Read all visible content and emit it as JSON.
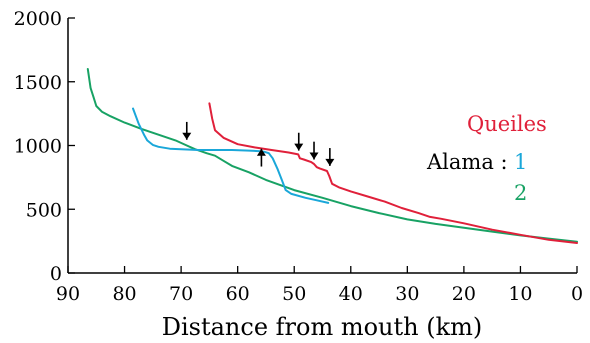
{
  "chart_data": {
    "type": "line",
    "xlabel": "Distance from mouth (km)",
    "ylabel": "",
    "xlim": [
      90,
      0
    ],
    "ylim": [
      0,
      2000
    ],
    "x_reversed": true,
    "x_ticks": [
      90,
      80,
      70,
      60,
      50,
      40,
      30,
      20,
      10,
      0
    ],
    "y_ticks": [
      0,
      500,
      1000,
      1500,
      2000
    ],
    "grid": false,
    "legend": {
      "placement": "right",
      "label": "Alama :",
      "entries": [
        {
          "key": "1",
          "series": "Alama 1",
          "color": "#1aa7d9"
        },
        {
          "key": "2",
          "series": "Alama 2",
          "color": "#18a264"
        }
      ],
      "queiles_label": "Queiles"
    },
    "series": [
      {
        "id": "alama2",
        "color": "#18a264",
        "x": [
          86.5,
          86.0,
          85.5,
          85.0,
          84.0,
          82.5,
          80.0,
          77.0,
          74.0,
          71.0,
          69.0,
          67.5,
          66.5,
          65.5,
          64.0,
          62.5,
          61.0,
          58.0,
          55.0,
          50.0,
          45.0,
          40.0,
          35.0,
          30.0,
          25.0,
          20.0,
          15.0,
          10.0,
          5.0,
          0.0
        ],
        "y": [
          1600,
          1450,
          1380,
          1310,
          1265,
          1230,
          1180,
          1130,
          1085,
          1040,
          1000,
          970,
          955,
          940,
          920,
          880,
          840,
          790,
          730,
          650,
          590,
          525,
          470,
          420,
          385,
          355,
          325,
          295,
          270,
          245
        ]
      },
      {
        "id": "alama1",
        "color": "#1aa7d9",
        "x": [
          78.5,
          77.5,
          76.5,
          76.0,
          75.0,
          74.0,
          72.0,
          70.0,
          67.0,
          64.0,
          61.0,
          58.0,
          56.0,
          55.2,
          54.5,
          53.8,
          53.0,
          52.2,
          51.5,
          50.5,
          48.0,
          46.0,
          44.0
        ],
        "y": [
          1290,
          1170,
          1080,
          1040,
          1005,
          990,
          975,
          970,
          965,
          965,
          965,
          960,
          955,
          950,
          940,
          900,
          820,
          730,
          650,
          620,
          590,
          570,
          550
        ]
      },
      {
        "id": "queiles",
        "color": "#e0203a",
        "x": [
          65.0,
          64.5,
          64.0,
          62.5,
          60.0,
          57.0,
          54.0,
          51.0,
          49.3,
          49.0,
          48.3,
          47.0,
          46.5,
          46.0,
          45.5,
          44.2,
          43.8,
          43.3,
          42.0,
          40.0,
          37.0,
          34.0,
          31.0,
          28.0,
          26.0,
          24.0,
          20.0,
          15.0,
          10.0,
          5.0,
          0.0
        ],
        "y": [
          1330,
          1210,
          1120,
          1060,
          1010,
          985,
          965,
          945,
          930,
          900,
          890,
          870,
          855,
          830,
          820,
          800,
          760,
          700,
          670,
          640,
          600,
          560,
          510,
          470,
          440,
          425,
          390,
          340,
          300,
          260,
          235
        ]
      }
    ],
    "annotations": [
      {
        "type": "arrow-down",
        "x": 69,
        "y_tip": 1045,
        "y_tail": 1185
      },
      {
        "type": "arrow-up",
        "x": 55.8,
        "y_tip": 975,
        "y_tail": 835
      },
      {
        "type": "arrow-down",
        "x": 49.2,
        "y_tip": 960,
        "y_tail": 1100
      },
      {
        "type": "arrow-down",
        "x": 46.5,
        "y_tip": 890,
        "y_tail": 1030
      },
      {
        "type": "arrow-down",
        "x": 43.7,
        "y_tip": 840,
        "y_tail": 980
      }
    ]
  }
}
